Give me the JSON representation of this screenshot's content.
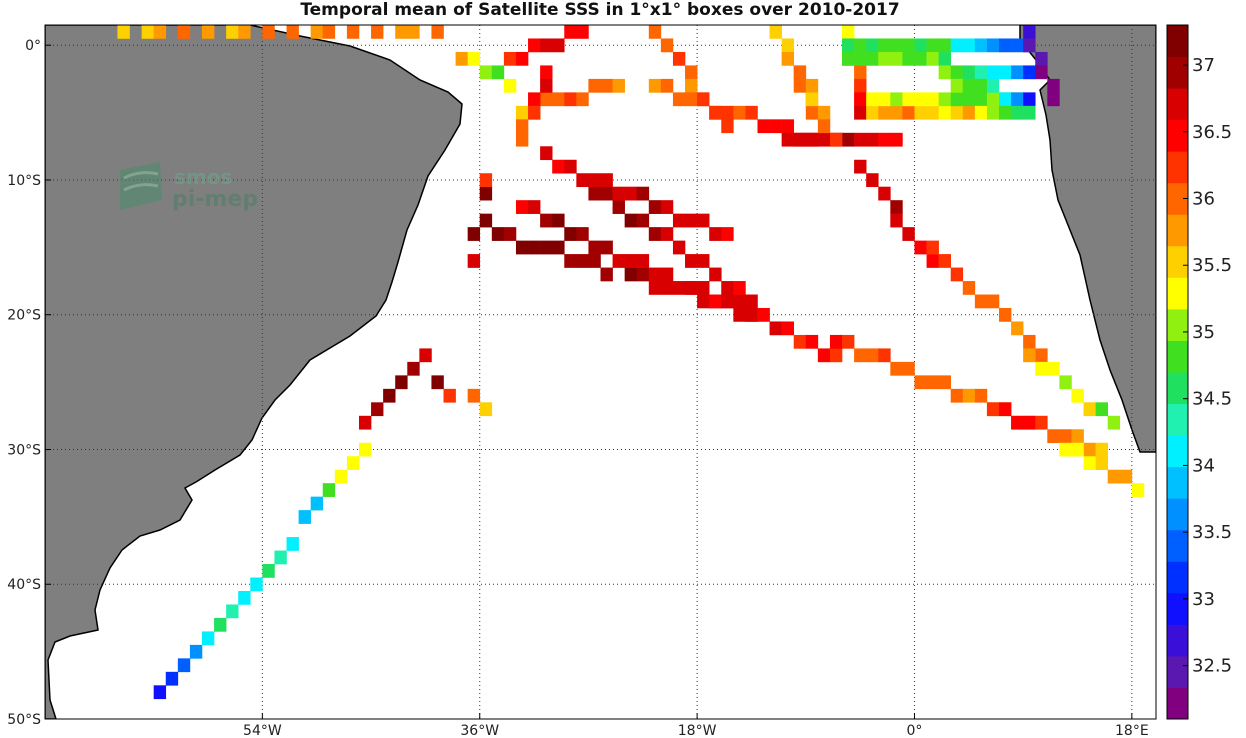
{
  "title": "Temporal mean of Satellite SSS in 1°x1° boxes over 2010-2017",
  "watermark": {
    "line1": "smos",
    "line2": "pi-mep"
  },
  "colors": {
    "land": "#7f7f7f",
    "ocean": "#ffffff",
    "grid": "#333333"
  },
  "axes": {
    "lon_range": [
      -72,
      20
    ],
    "lat_range": [
      -50,
      1.5
    ],
    "x_ticks": [
      {
        "value": -54,
        "label": "54°W"
      },
      {
        "value": -36,
        "label": "36°W"
      },
      {
        "value": -18,
        "label": "18°W"
      },
      {
        "value": 0,
        "label": "0°"
      },
      {
        "value": 18,
        "label": "18°E"
      }
    ],
    "y_ticks": [
      {
        "value": 0,
        "label": "0°"
      },
      {
        "value": -10,
        "label": "10°S"
      },
      {
        "value": -20,
        "label": "20°S"
      },
      {
        "value": -30,
        "label": "30°S"
      },
      {
        "value": -40,
        "label": "40°S"
      },
      {
        "value": -50,
        "label": "50°S"
      }
    ],
    "grid": "dotted"
  },
  "colorbar": {
    "range": [
      32.1,
      37.3
    ],
    "ticks": [
      {
        "value": 37,
        "label": "37"
      },
      {
        "value": 36.5,
        "label": "36.5"
      },
      {
        "value": 36,
        "label": "36"
      },
      {
        "value": 35.5,
        "label": "35.5"
      },
      {
        "value": 35,
        "label": "35"
      },
      {
        "value": 34.5,
        "label": "34.5"
      },
      {
        "value": 34,
        "label": "34"
      },
      {
        "value": 33.5,
        "label": "33.5"
      },
      {
        "value": 33,
        "label": "33"
      },
      {
        "value": 32.5,
        "label": "32.5"
      }
    ],
    "colors": [
      "#800080",
      "#5a18b0",
      "#3a10d8",
      "#1010ff",
      "#0030ff",
      "#0060ff",
      "#0090ff",
      "#00c0ff",
      "#00f0ff",
      "#20f0b0",
      "#20e060",
      "#40e020",
      "#90f010",
      "#ffff00",
      "#ffd000",
      "#ff9900",
      "#ff6600",
      "#ff3300",
      "#ff0000",
      "#d80000",
      "#a00000",
      "#800000"
    ]
  },
  "chart_data": {
    "type": "heatmap",
    "title": "Temporal mean of Satellite SSS in 1°x1° boxes over 2010-2017",
    "xlabel": "",
    "ylabel": "",
    "xlim": [
      -72,
      20
    ],
    "ylim": [
      -50,
      1.5
    ],
    "value_range": [
      32.1,
      37.3
    ],
    "tracks": [
      {
        "from": [
          -63,
          -48.5
        ],
        "to": [
          -46,
          -30
        ],
        "values": [
          33.0,
          33.1,
          33.3,
          33.6,
          34.1,
          34.5,
          34.4,
          34.2,
          34.1,
          34.6,
          34.3,
          34.0,
          33.9,
          33.8,
          34.9,
          35.2,
          35.3,
          35.4
        ]
      },
      {
        "from": [
          -46,
          -28
        ],
        "to": [
          -41,
          -23
        ],
        "values": [
          36.7,
          36.9,
          37.2,
          37.1,
          37.0,
          36.6
        ]
      },
      {
        "from": [
          -40,
          -25
        ],
        "to": [
          -36,
          -27
        ],
        "values": [
          37.1,
          36.2,
          35.9,
          35.6
        ]
      },
      {
        "from": [
          -37,
          -16
        ],
        "to": [
          -36,
          -10
        ],
        "values": [
          36.6,
          37.1,
          37.2,
          37.1,
          36.3
        ]
      },
      {
        "from": [
          -35,
          -14
        ],
        "to": [
          -14,
          -20
        ],
        "values": [
          37.1,
          37.0,
          37.1,
          37.1,
          37.2,
          37.1,
          37.0,
          36.9,
          36.9,
          37.0,
          37.1,
          36.9,
          36.8,
          36.7,
          36.8,
          36.8,
          36.7,
          36.8,
          36.8,
          36.7,
          36.7
        ]
      },
      {
        "from": [
          -33,
          -12
        ],
        "to": [
          -7,
          -23
        ],
        "values": [
          36.5,
          36.7,
          36.9,
          37.1,
          37.1,
          37.0,
          37.0,
          36.9,
          36.8,
          36.7,
          36.7,
          36.6,
          36.7,
          36.7,
          36.6,
          36.5,
          36.6,
          36.7,
          36.6,
          36.5,
          36.6,
          36.4,
          36.3,
          36.5,
          36.4,
          36.3
        ]
      },
      {
        "from": [
          -31,
          -8
        ],
        "to": [
          -14,
          -19
        ],
        "values": [
          36.6,
          36.5,
          36.7,
          36.8,
          36.9,
          36.9,
          37.0,
          37.1,
          37.0,
          36.9,
          36.8,
          36.8,
          36.7,
          36.8,
          36.7,
          36.6,
          36.5,
          36.6
        ]
      },
      {
        "from": [
          -27,
          -10
        ],
        "to": [
          -16,
          -14
        ],
        "values": [
          36.6,
          36.7,
          36.8,
          36.8,
          36.9,
          36.9,
          36.8,
          36.7,
          36.6,
          36.7,
          36.6,
          36.5
        ]
      },
      {
        "from": [
          -7,
          -22
        ],
        "to": [
          9,
          -28
        ],
        "values": [
          36.4,
          36.3,
          36.1,
          36.0,
          36.2,
          36.1,
          36.0,
          35.9,
          36.1,
          36.0,
          35.9,
          35.8,
          35.9,
          35.7,
          35.8,
          35.6,
          35.7
        ]
      },
      {
        "from": [
          6,
          -27
        ],
        "to": [
          15,
          -30
        ],
        "values": [
          36.3,
          36.4,
          36.5,
          36.4,
          36.2,
          36.1,
          36.0,
          35.8,
          35.7,
          35.5
        ]
      },
      {
        "from": [
          12,
          -30
        ],
        "to": [
          18,
          -33
        ],
        "values": [
          35.4,
          35.2,
          35.3,
          35.6,
          35.7,
          35.8,
          35.4
        ]
      },
      {
        "from": [
          -38,
          -1
        ],
        "to": [
          -34,
          -3
        ],
        "values": [
          35.7,
          35.4,
          35.1,
          34.8,
          35.3
        ]
      },
      {
        "from": [
          -34,
          -1
        ],
        "to": [
          -28,
          1
        ],
        "values": [
          36.3,
          36.5,
          36.4,
          36.6,
          36.7,
          36.5,
          36.4
        ]
      },
      {
        "from": [
          -33,
          -5
        ],
        "to": [
          -25,
          -3
        ],
        "values": [
          35.6,
          35.8,
          36.0,
          36.1,
          36.2,
          35.9,
          36.0,
          36.1,
          35.8
        ]
      },
      {
        "from": [
          -31,
          -2
        ],
        "to": [
          -33,
          -7
        ],
        "values": [
          36.4,
          36.6,
          36.5,
          36.3,
          36.1,
          35.9
        ]
      },
      {
        "from": [
          -22,
          1
        ],
        "to": [
          -16,
          -6
        ],
        "values": [
          36.0,
          36.1,
          36.2,
          35.9,
          35.7,
          35.9,
          36.1,
          36.2
        ]
      },
      {
        "from": [
          -22,
          -3
        ],
        "to": [
          -9,
          -7
        ],
        "values": [
          35.8,
          35.9,
          36.1,
          36.0,
          36.2,
          36.3,
          36.2,
          36.1,
          36.3,
          36.4,
          36.5,
          36.4,
          36.5,
          36.6
        ]
      },
      {
        "from": [
          -11,
          -7
        ],
        "to": [
          -2,
          -7
        ],
        "values": [
          36.6,
          36.8,
          36.7,
          36.6,
          36.8,
          36.9,
          36.7,
          36.6,
          36.5,
          36.4
        ]
      },
      {
        "from": [
          -5,
          -9
        ],
        "to": [
          1,
          -16
        ],
        "values": [
          36.6,
          36.7,
          36.8,
          36.9,
          36.8,
          36.7,
          36.5,
          36.4
        ]
      },
      {
        "from": [
          1,
          -15
        ],
        "to": [
          10,
          -23
        ],
        "values": [
          36.3,
          36.2,
          36.3,
          36.1,
          36.0,
          35.9,
          36.0,
          35.8,
          36.1,
          35.9
        ]
      },
      {
        "from": [
          9,
          -23
        ],
        "to": [
          16,
          -28
        ],
        "values": [
          35.7,
          35.4,
          35.2,
          35.0,
          35.3,
          35.5,
          34.9,
          35.1
        ]
      },
      {
        "from": [
          -12,
          1
        ],
        "to": [
          -9,
          -5
        ],
        "values": [
          35.6,
          35.5,
          35.7,
          35.8,
          35.9,
          36.0,
          36.1
        ]
      },
      {
        "from": [
          -10,
          -2
        ],
        "to": [
          -7,
          -7
        ],
        "values": [
          35.9,
          35.7,
          35.6,
          35.8,
          36.0,
          36.2
        ]
      },
      {
        "from": [
          -6,
          1
        ],
        "to": [
          -5,
          -5
        ],
        "values": [
          35.4,
          35.6,
          35.8,
          36.1,
          36.3,
          36.5,
          36.6
        ]
      },
      {
        "from": [
          -4,
          -5
        ],
        "to": [
          4,
          -5
        ],
        "values": [
          35.6,
          35.7,
          35.8,
          35.9,
          35.6,
          35.5,
          35.4,
          35.6,
          35.8
        ]
      },
      {
        "from": [
          -4,
          -4
        ],
        "to": [
          8,
          -4
        ],
        "values": [
          35.3,
          35.2,
          35.1,
          35.2,
          35.4,
          35.2,
          35.0,
          34.8,
          34.7,
          34.9,
          35.0,
          34.9,
          34.8
        ]
      },
      {
        "from": [
          -6,
          0
        ],
        "to": [
          2,
          0
        ],
        "values": [
          34.6,
          34.7,
          34.5,
          34.8,
          34.9,
          34.7,
          34.6,
          34.8,
          34.9
        ]
      },
      {
        "from": [
          -6,
          -1
        ],
        "to": [
          2,
          -1
        ],
        "values": [
          34.8,
          34.9,
          34.7,
          35.0,
          35.1,
          34.9,
          34.8,
          35.0,
          34.6
        ]
      },
      {
        "from": [
          2,
          0
        ],
        "to": [
          9,
          0
        ],
        "values": [
          34.9,
          34.2,
          34.0,
          33.8,
          33.6,
          33.4,
          33.3,
          33.5
        ]
      },
      {
        "from": [
          2,
          -2
        ],
        "to": [
          9,
          -2
        ],
        "values": [
          35.0,
          34.8,
          34.6,
          34.4,
          34.2,
          34.0,
          33.6,
          33.2
        ]
      },
      {
        "from": [
          3,
          -3
        ],
        "to": [
          9,
          -4
        ],
        "values": [
          35.1,
          34.9,
          34.7,
          34.3,
          34.1,
          33.7,
          33.0
        ]
      },
      {
        "from": [
          5,
          -5
        ],
        "to": [
          9,
          -5
        ],
        "values": [
          35.3,
          35.0,
          34.8,
          34.6,
          34.5
        ]
      },
      {
        "from": [
          9,
          1
        ],
        "to": [
          11,
          -4
        ],
        "values": [
          32.6,
          32.5,
          32.4,
          32.3,
          32.2,
          32.3
        ]
      },
      {
        "from": [
          -66,
          1
        ],
        "to": [
          -40,
          1
        ],
        "values": [
          35.5,
          35.6,
          35.8,
          35.9,
          35.7,
          35.6,
          35.8,
          36.0,
          35.9,
          35.8,
          36.1,
          36.0,
          35.9,
          35.7,
          35.8,
          36.0
        ]
      }
    ]
  }
}
